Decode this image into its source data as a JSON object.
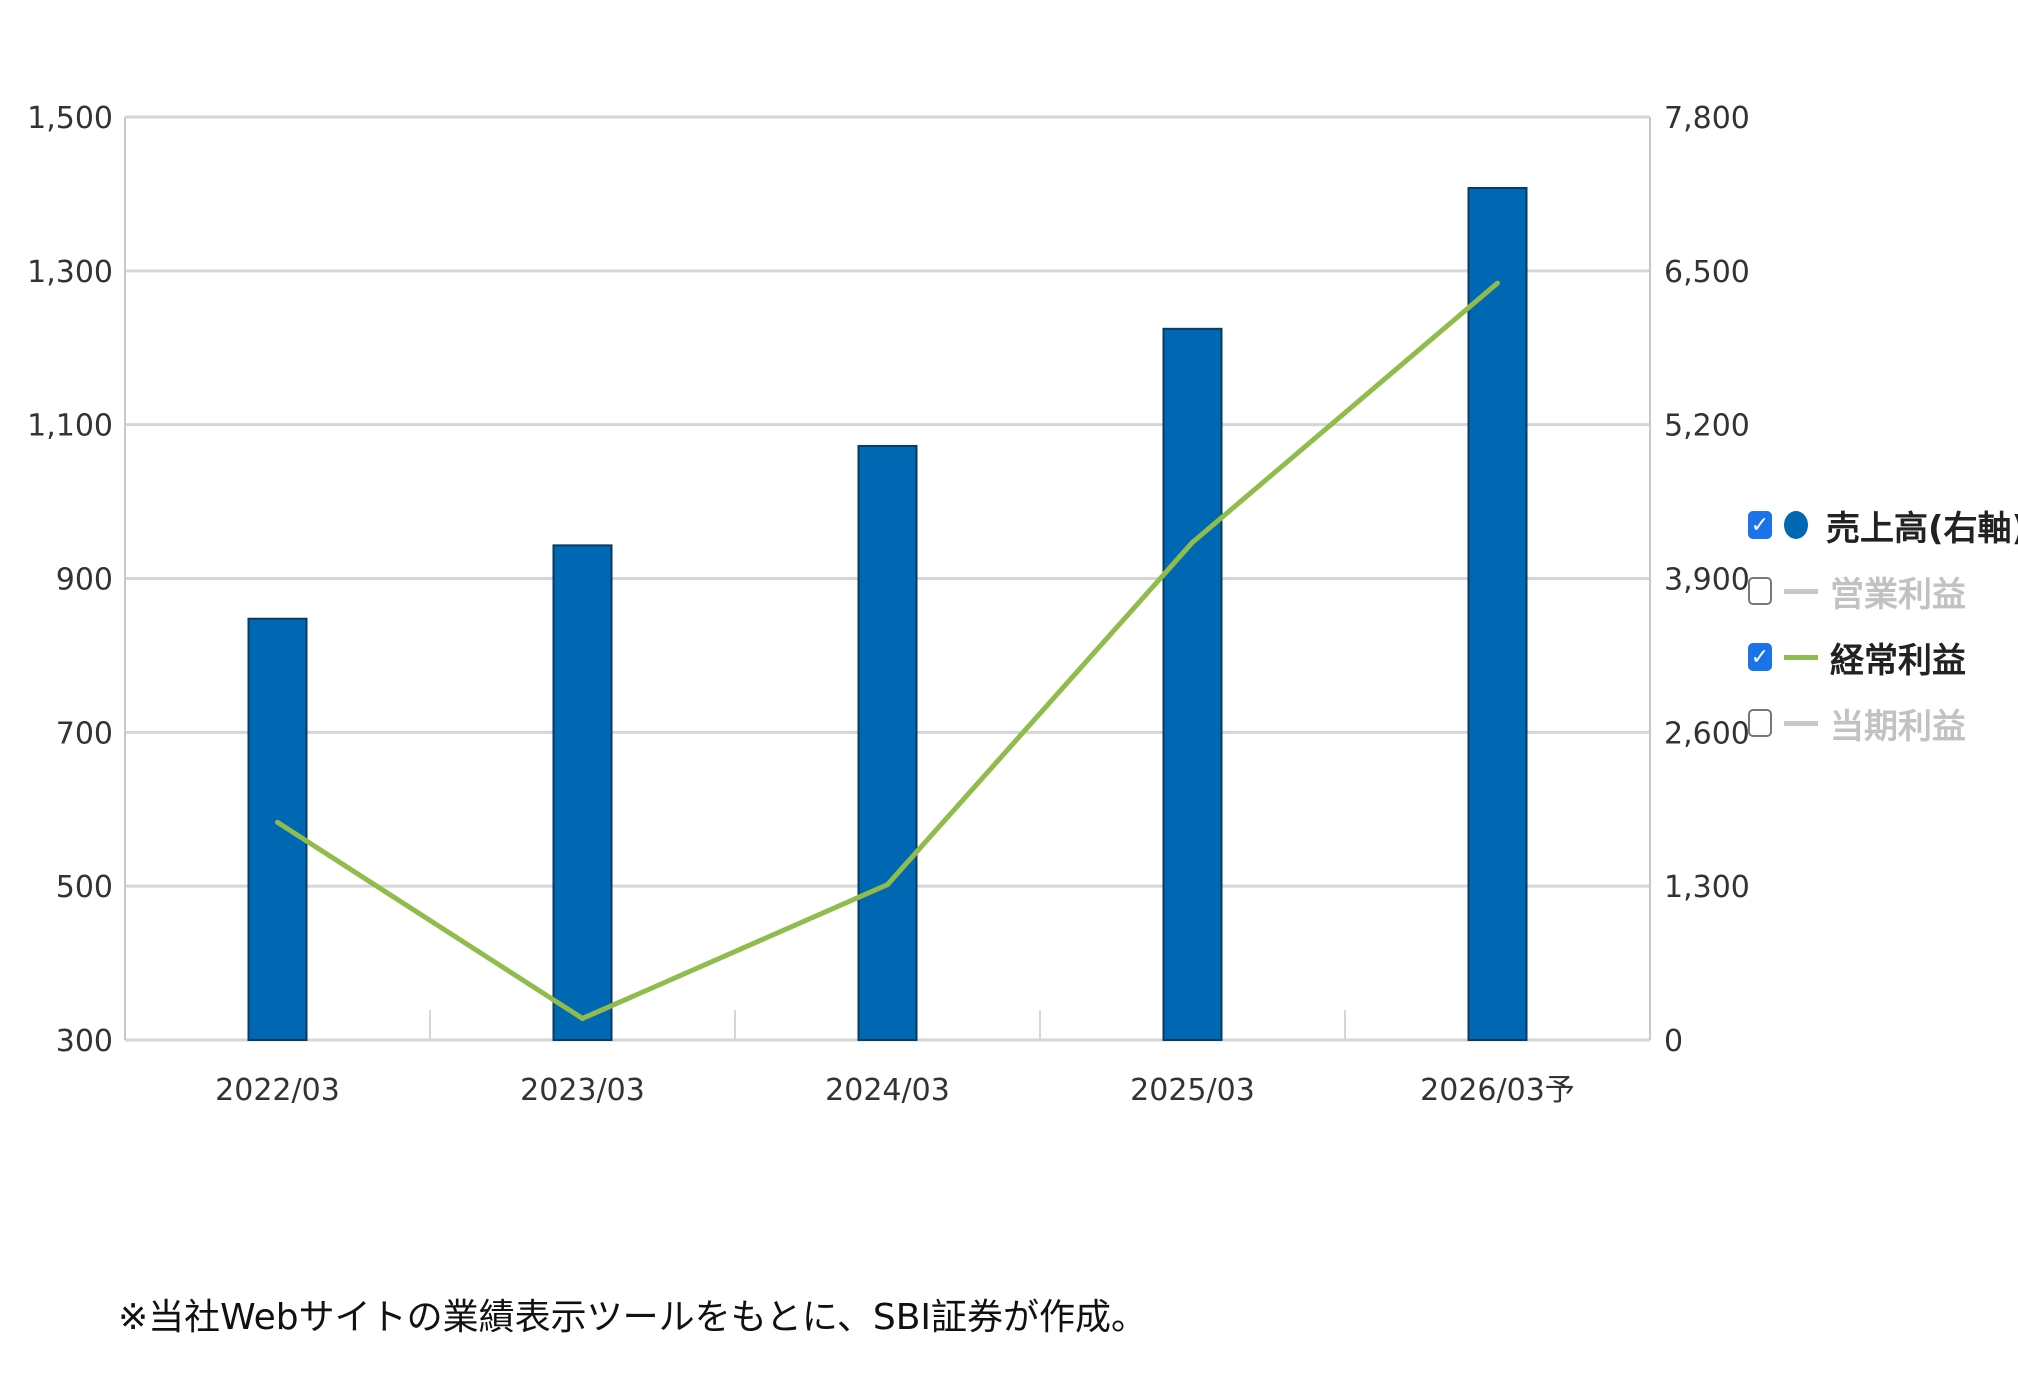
{
  "chart_data": {
    "type": "bar",
    "categories": [
      "2022/03",
      "2023/03",
      "2024/03",
      "2025/03",
      "2026/03予"
    ],
    "left_axis": {
      "ticks": [
        "1,500",
        "1,300",
        "1,100",
        "900",
        "700",
        "500",
        "300"
      ],
      "range": [
        300,
        1500
      ]
    },
    "right_axis": {
      "ticks": [
        "7,800",
        "6,500",
        "5,200",
        "3,900",
        "2,600",
        "1,300",
        "0"
      ],
      "range": [
        0,
        7800
      ]
    },
    "series": [
      {
        "name": "売上高(右軸)",
        "type": "bar",
        "axis": "right",
        "color": "#0068b3",
        "values": [
          3560,
          4180,
          5020,
          6010,
          7200
        ]
      },
      {
        "name": "経常利益",
        "type": "line",
        "axis": "left",
        "color": "#8fbc4b",
        "values": [
          583,
          328,
          502,
          947,
          1284
        ]
      }
    ],
    "grid": true
  },
  "legend": {
    "items": [
      {
        "label": "売上高(右軸)",
        "checked": true,
        "symbol": "dot",
        "color": "#0068b3"
      },
      {
        "label": "営業利益",
        "checked": false,
        "symbol": "line",
        "color": "#c8c8c8"
      },
      {
        "label": "経常利益",
        "checked": true,
        "symbol": "line",
        "color": "#8fbc4b"
      },
      {
        "label": "当期利益",
        "checked": false,
        "symbol": "line",
        "color": "#c8c8c8"
      }
    ],
    "check_mark": "✓"
  },
  "footnote": "※当社Webサイトの業績表示ツールをもとに、SBI証券が作成。"
}
